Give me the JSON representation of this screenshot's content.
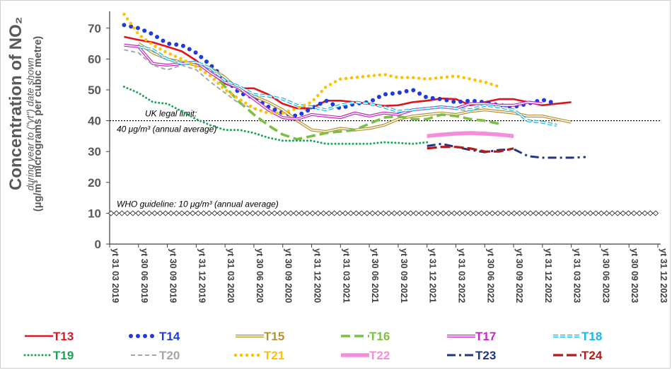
{
  "chart_data": {
    "type": "line",
    "title": "Concentration of NO2",
    "ylabel": "Concentration of NO₂",
    "ylabel_sub": "during year to (\"yt\") date shown",
    "ylabel_units": "(μg/m³ micrograms per cubic metre)",
    "ylim": [
      0,
      75
    ],
    "yticks": [
      0,
      10,
      20,
      30,
      40,
      50,
      60,
      70
    ],
    "xtick_labels": [
      "yt 31 03 2019",
      "yt 30 06 2019",
      "yt 30 09 2019",
      "yt 31 12 2019",
      "yt 31 03 2020",
      "yt 30 06 2020",
      "yt 30 09 2020",
      "yt 31 12 2020",
      "yt 31 03 2021",
      "yt 30 06 2021",
      "yt 30 09 2021",
      "yt 31 12 2021",
      "yt 31 03 2022",
      "yt 30 06 2022",
      "yt 30 09 2022",
      "yt 31 12 2022",
      "yt 31 03 2023",
      "yt 30 06 2023",
      "yt 30 09 2023",
      "yt 31 12 2023"
    ],
    "grid": false,
    "legend_position": "bottom",
    "reference_lines": [
      {
        "name": "uk-legal-limit",
        "value": 40,
        "label_line1": "UK legal limit:",
        "label_line2": "40 μg/m³ (annual average)"
      },
      {
        "name": "who-guideline",
        "value": 10,
        "label_line1": "WHO guideline:  10 μg/m³ (annual average)"
      }
    ],
    "series": [
      {
        "name": "T13",
        "color": "#e3131b",
        "style": "solid-thick",
        "start": 0.5,
        "values": [
          67.2,
          66.2,
          65.4,
          64.0,
          62.5,
          59.5,
          55.5,
          52.0,
          50.5,
          50.5,
          48.5,
          45.5,
          44.0,
          44.0,
          46.5,
          46.5,
          46.0,
          45.5,
          44.8,
          45.0,
          46.0,
          46.5,
          47.2,
          47.0,
          45.0,
          46.0,
          47.0,
          47.0,
          46.0,
          45.0,
          45.5,
          46.0
        ]
      },
      {
        "name": "T14",
        "color": "#1f3be0",
        "style": "dots-large",
        "start": 0.5,
        "values": [
          71.0,
          70.0,
          68.0,
          65.0,
          64.5,
          62.0,
          58.0,
          53.5,
          49.0,
          47.5,
          44.5,
          42.5,
          41.5,
          44.0,
          46.5,
          44.0,
          45.5,
          46.0,
          48.5,
          49.0,
          50.0,
          47.5,
          47.0,
          46.0,
          46.5,
          46.0,
          45.0,
          44.5,
          45.5,
          46.8,
          45.5
        ]
      },
      {
        "name": "T15",
        "color": "#b8902e",
        "style": "double",
        "start": 1.0,
        "values": [
          65.0,
          62.0,
          60.0,
          59.0,
          58.0,
          57.0,
          54.0,
          50.0,
          48.0,
          46.0,
          43.5,
          40.0,
          37.0,
          36.5,
          37.5,
          37.0,
          37.5,
          38.5,
          40.5,
          41.5,
          42.0,
          42.5,
          42.0,
          43.0,
          43.5,
          43.0,
          42.5,
          41.5,
          41.5,
          40.5,
          39.5
        ]
      },
      {
        "name": "T16",
        "color": "#7ac143",
        "style": "dash-long",
        "start": 3.5,
        "values": [
          56.0,
          51.0,
          46.0,
          42.0,
          38.5,
          35.5,
          34.0,
          35.0,
          36.0,
          36.5,
          37.0,
          39.0,
          41.0,
          41.5,
          40.5,
          40.5,
          42.0,
          41.5,
          40.5,
          40.0,
          39.0
        ]
      },
      {
        "name": "T17",
        "color": "#c825c8",
        "style": "double",
        "start": 0.5,
        "values": [
          64.5,
          64.0,
          58.5,
          58.0,
          58.5,
          59.0,
          55.5,
          52.5,
          50.5,
          47.0,
          43.5,
          41.0,
          40.5,
          42.0,
          41.5,
          41.0,
          42.5,
          41.5,
          42.5,
          42.0,
          43.5,
          44.0,
          44.5,
          44.0,
          45.5,
          45.5,
          45.0,
          45.0,
          46.0,
          45.5
        ]
      },
      {
        "name": "T18",
        "color": "#1ab4e6",
        "style": "double-dash",
        "start": 1.0,
        "values": [
          64.0,
          63.0,
          60.0,
          58.5,
          59.0,
          57.0,
          53.0,
          51.0,
          48.5,
          48.0,
          47.0,
          45.0,
          44.5,
          43.5,
          45.0,
          46.0,
          45.5,
          44.5,
          43.0,
          43.5,
          44.0,
          44.5,
          44.0,
          43.5,
          45.0,
          44.5,
          43.5,
          40.0,
          39.5,
          38.5
        ]
      },
      {
        "name": "T19",
        "color": "#14a751",
        "style": "dotted",
        "start": 0.5,
        "values": [
          51.0,
          49.0,
          46.0,
          45.5,
          43.0,
          40.5,
          38.5,
          37.0,
          37.0,
          36.0,
          34.5,
          33.5,
          33.5,
          33.5,
          32.5,
          32.5,
          32.5,
          32.5,
          33.0,
          32.8,
          32.5,
          33.0
        ]
      },
      {
        "name": "T20",
        "color": "#a6a6a6",
        "style": "dashed",
        "start": 0.5,
        "values": [
          63.0,
          62.0,
          58.0,
          56.5,
          58.0,
          56.5,
          52.5,
          49.0,
          45.5,
          44.0
        ]
      },
      {
        "name": "T21",
        "color": "#ffc000",
        "style": "dots-small",
        "start": 0.5,
        "values": [
          74.5,
          68.0,
          64.5,
          62.0,
          60.0,
          57.5,
          54.5,
          50.0,
          47.0,
          44.0,
          42.5,
          42.5,
          44.0,
          46.0,
          51.0,
          53.5,
          54.0,
          54.5,
          55.0,
          54.0,
          54.0,
          53.5,
          54.0,
          54.5,
          53.5,
          52.5,
          51.0
        ]
      },
      {
        "name": "T22",
        "color": "#f58ddb",
        "style": "solid-wide",
        "start": 11.0,
        "values": [
          35.0,
          35.5,
          35.8,
          36.0,
          35.8,
          35.5,
          35.0
        ]
      },
      {
        "name": "T23",
        "color": "#1f3580",
        "style": "dash-dot",
        "start": 11.0,
        "values": [
          31.8,
          32.5,
          31.5,
          30.5,
          29.8,
          30.5,
          30.8,
          28.5,
          28.0,
          28.0,
          28.0,
          28.2
        ]
      },
      {
        "name": "T24",
        "color": "#b31b1b",
        "style": "dash-long-thick",
        "start": 11.0,
        "values": [
          31.0,
          31.5,
          31.5,
          31.0,
          30.0,
          30.0,
          31.0
        ]
      }
    ]
  }
}
